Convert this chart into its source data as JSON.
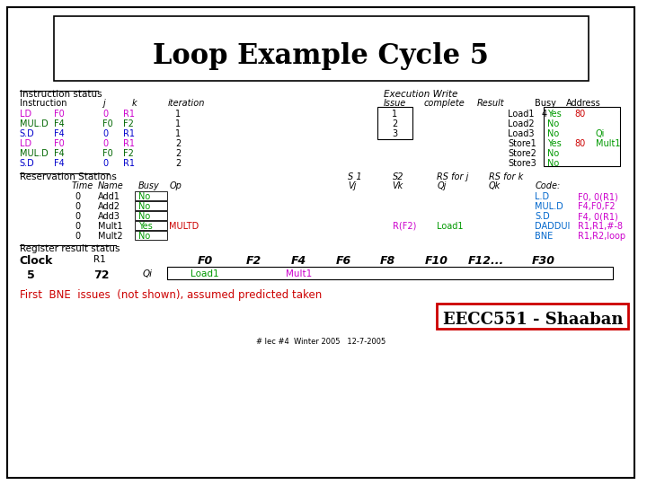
{
  "title": "Loop Example Cycle 5",
  "bg_color": "#ffffff",
  "footer_text": "# lec #4  Winter 2005   12-7-2005",
  "eecc_text": "EECC551 - Shaaban",
  "first_bne_text": "First  BNE  issues  (not shown), assumed predicted taken",
  "instr_data": [
    [
      "LD",
      "F0",
      "0",
      "R1",
      "1",
      "1",
      "#cc00cc"
    ],
    [
      "MUL.D",
      "F4",
      "F0",
      "F2",
      "1",
      "2",
      "#006600"
    ],
    [
      "S.D",
      "F4",
      "0",
      "R1",
      "1",
      "3",
      "#0000cc"
    ],
    [
      "LD",
      "F0",
      "0",
      "R1",
      "2",
      "",
      "#cc00cc"
    ],
    [
      "MUL.D",
      "F4",
      "F0",
      "F2",
      "2",
      "",
      "#006600"
    ],
    [
      "S.D",
      "F4",
      "0",
      "R1",
      "2",
      "",
      "#0000cc"
    ]
  ],
  "load_store": [
    [
      "Load1",
      "4",
      "Yes",
      "80",
      ""
    ],
    [
      "Load2",
      "",
      "No",
      "",
      ""
    ],
    [
      "Load3",
      "",
      "No",
      "",
      "Qi"
    ],
    [
      "Store1",
      "",
      "Yes",
      "80",
      "Mult1"
    ],
    [
      "Store2",
      "",
      "No",
      "",
      ""
    ],
    [
      "Store3",
      "",
      "No",
      "",
      ""
    ]
  ],
  "rs_data": [
    [
      "0",
      "Add1",
      "No",
      "",
      "",
      "",
      "",
      "",
      "L.D",
      "F0, 0(R1)"
    ],
    [
      "0",
      "Add2",
      "No",
      "",
      "",
      "",
      "",
      "",
      "MUL.D",
      "F4,F0,F2"
    ],
    [
      "0",
      "Add3",
      "No",
      "",
      "",
      "",
      "",
      "",
      "S.D",
      "F4, 0(R1)"
    ],
    [
      "0",
      "Mult1",
      "Yes",
      "MULTD",
      "",
      "R(F2)",
      "Load1",
      "",
      "DADDUI",
      "R1,R1,#-8"
    ],
    [
      "0",
      "Mult2",
      "No",
      "",
      "",
      "",
      "",
      "",
      "BNE",
      "R1,R2,loop"
    ]
  ],
  "reg_labels": [
    "F0",
    "F2",
    "F4",
    "F6",
    "F8",
    "F10",
    "F12...",
    "F30"
  ],
  "reg_x": [
    230,
    285,
    335,
    385,
    435,
    490,
    545,
    610
  ]
}
